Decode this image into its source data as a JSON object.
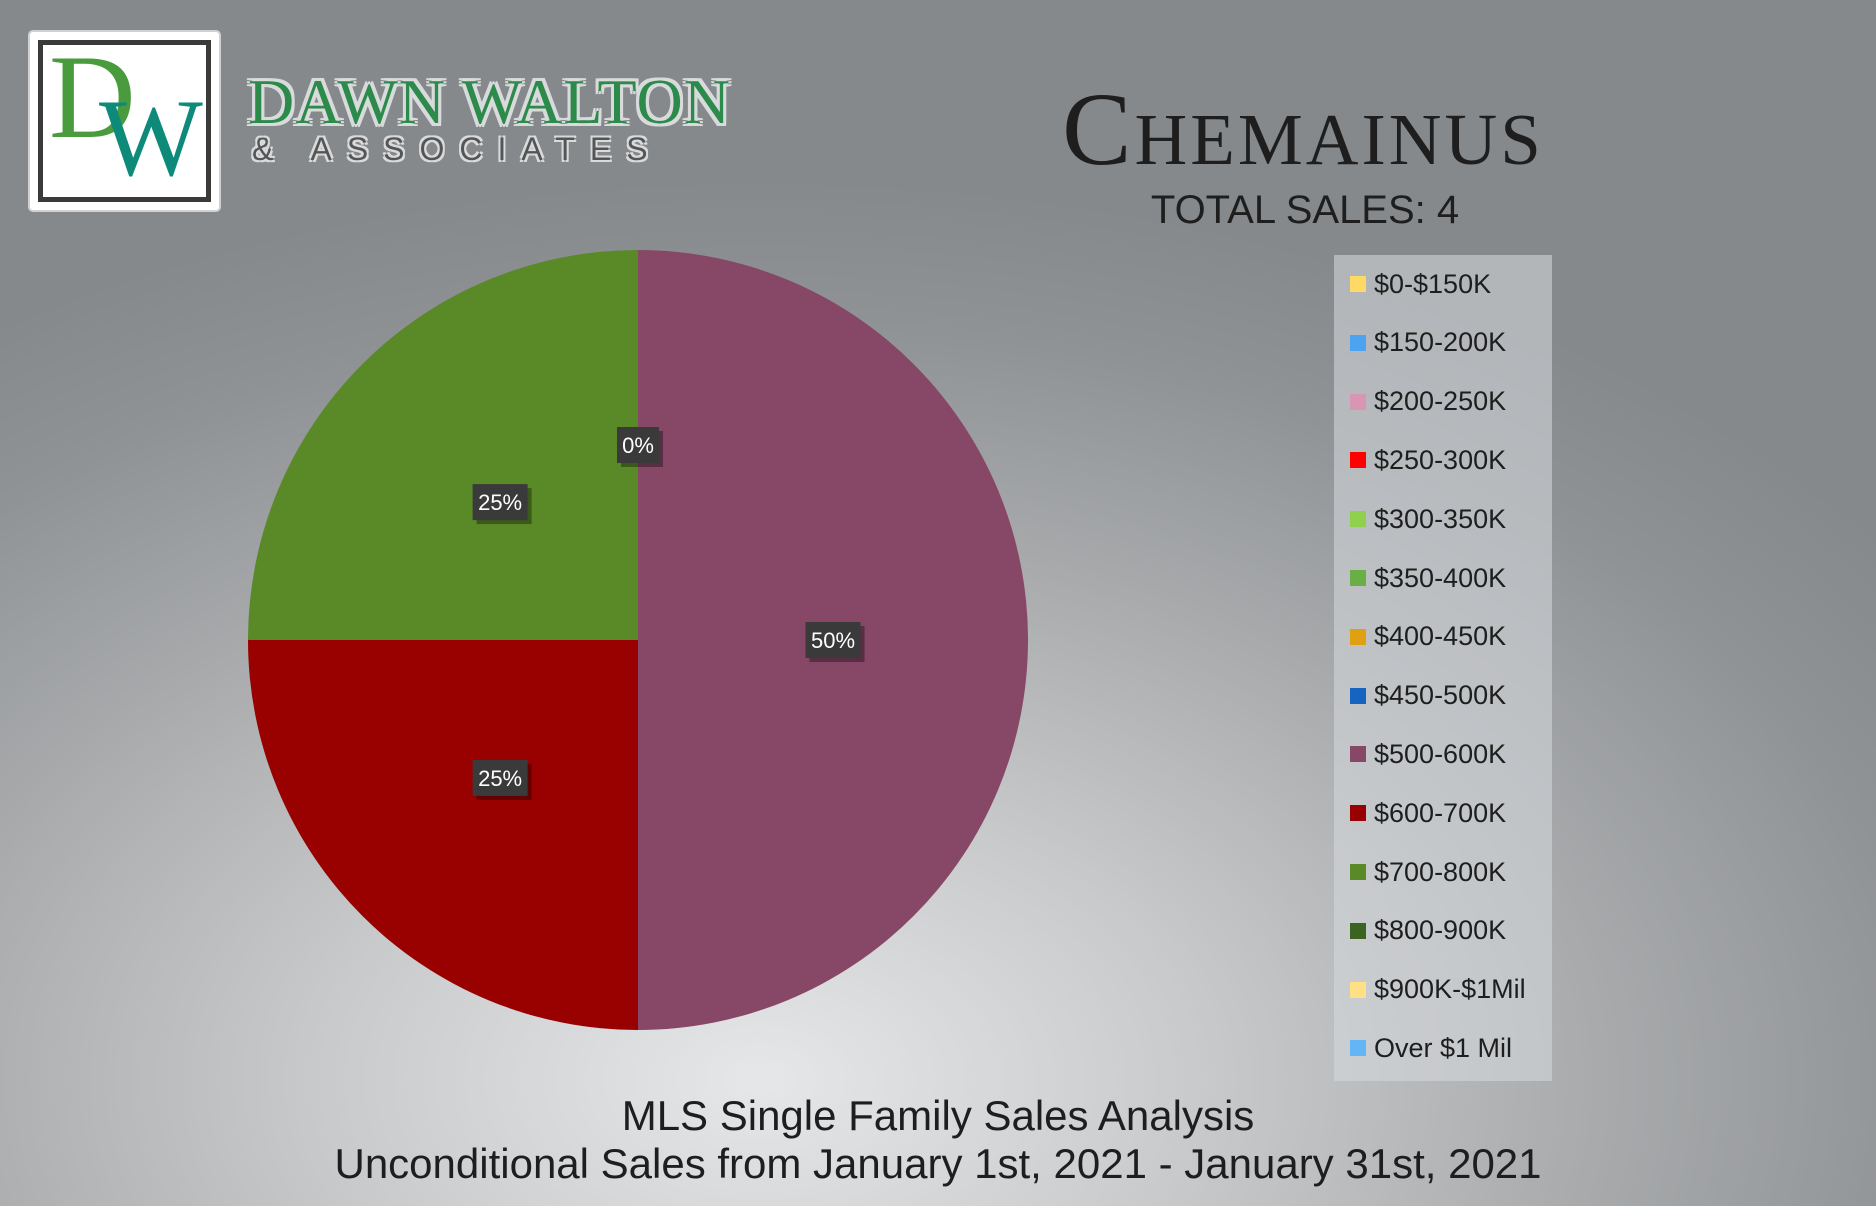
{
  "brand": {
    "logo_letters": "DW",
    "name": "DAWN WALTON",
    "sub": "& ASSOCIATES"
  },
  "header": {
    "title": "Chemainus",
    "subtitle": "TOTAL SALES: 4"
  },
  "chart_data": {
    "type": "pie",
    "title": "Chemainus",
    "subtitle": "TOTAL SALES: 4",
    "legend_position": "right",
    "slices": [
      {
        "label": "$0-$150K",
        "value": 0,
        "color": "#ffd966"
      },
      {
        "label": "$150-200K",
        "value": 0,
        "color": "#4ea3f1"
      },
      {
        "label": "$200-250K",
        "value": 0,
        "color": "#d896b4"
      },
      {
        "label": "$250-300K",
        "value": 0,
        "color": "#ff0000"
      },
      {
        "label": "$300-350K",
        "value": 0,
        "color": "#8fd14f"
      },
      {
        "label": "$350-400K",
        "value": 0,
        "color": "#6aaf45"
      },
      {
        "label": "$400-450K",
        "value": 0,
        "color": "#e0a010"
      },
      {
        "label": "$450-500K",
        "value": 0,
        "color": "#1565c0"
      },
      {
        "label": "$500-600K",
        "value": 50,
        "color": "#864866"
      },
      {
        "label": "$600-700K",
        "value": 25,
        "color": "#990000"
      },
      {
        "label": "$700-800K",
        "value": 25,
        "color": "#5a8a28"
      },
      {
        "label": "$800-900K",
        "value": 0,
        "color": "#3b6322"
      },
      {
        "label": "$900K-$1Mil",
        "value": 0,
        "color": "#ffe082"
      },
      {
        "label": "Over $1 Mil",
        "value": 0,
        "color": "#64b5f6"
      }
    ],
    "data_labels": [
      "0%",
      "50%",
      "25%",
      "25%"
    ]
  },
  "footer": {
    "line1": "MLS Single Family Sales Analysis",
    "line2": "Unconditional Sales from January 1st, 2021 - January 31st, 2021"
  }
}
